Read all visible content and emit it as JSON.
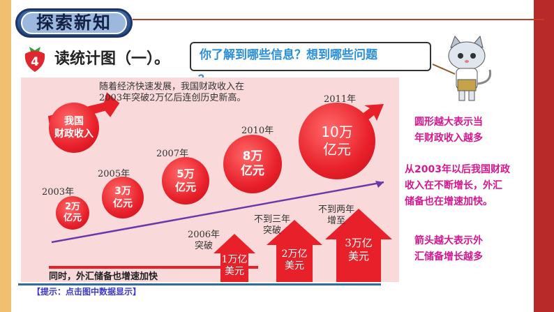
{
  "header": {
    "title": "探索新知"
  },
  "lesson": {
    "number": "4",
    "heading": "读统计图（一）。"
  },
  "question": {
    "line1": "你了解到哪些信息？想到哪些问题",
    "line2": "？"
  },
  "chart": {
    "intro": [
      "随着经济快速发展，我国财政收入在",
      "2003年突破2万亿后连创历史新高。"
    ],
    "label": [
      "我国",
      "财政收入"
    ],
    "bubbles": [
      {
        "year": "2003年",
        "value": [
          "2万",
          "亿元"
        ]
      },
      {
        "year": "2005年",
        "value": [
          "3万",
          "亿元"
        ]
      },
      {
        "year": "2007年",
        "value": [
          "5万",
          "亿元"
        ]
      },
      {
        "year": "2010年",
        "value": [
          "8万",
          "亿元"
        ]
      },
      {
        "year": "2011年",
        "value": [
          "10万",
          "亿元"
        ]
      }
    ],
    "reserve_arrows": [
      {
        "caption": [
          "2006年",
          "突破"
        ],
        "value": [
          "1万亿",
          "美元"
        ]
      },
      {
        "caption": [
          "不到三年",
          "突破"
        ],
        "value": [
          "2万亿",
          "美元"
        ]
      },
      {
        "caption": [
          "不到两年",
          "增至"
        ],
        "value": [
          "3万亿",
          "美元"
        ]
      }
    ],
    "footer": "同时，外汇储备也增速加快"
  },
  "notes": {
    "circle": [
      "圆形越大表示当",
      "年财政收入越多"
    ],
    "trend": [
      "从2003年以后我国财政",
      "收入在不断增长，外汇",
      "储备也在增速加快。"
    ],
    "arrow": [
      "箭头越大表示外",
      "汇储备增长越多"
    ]
  },
  "hint": "【提示：点击图中数据显示】",
  "colors": {
    "accent": "#e8202a",
    "note_text": "#d6178f",
    "title_blue": "#2a8fd6"
  }
}
